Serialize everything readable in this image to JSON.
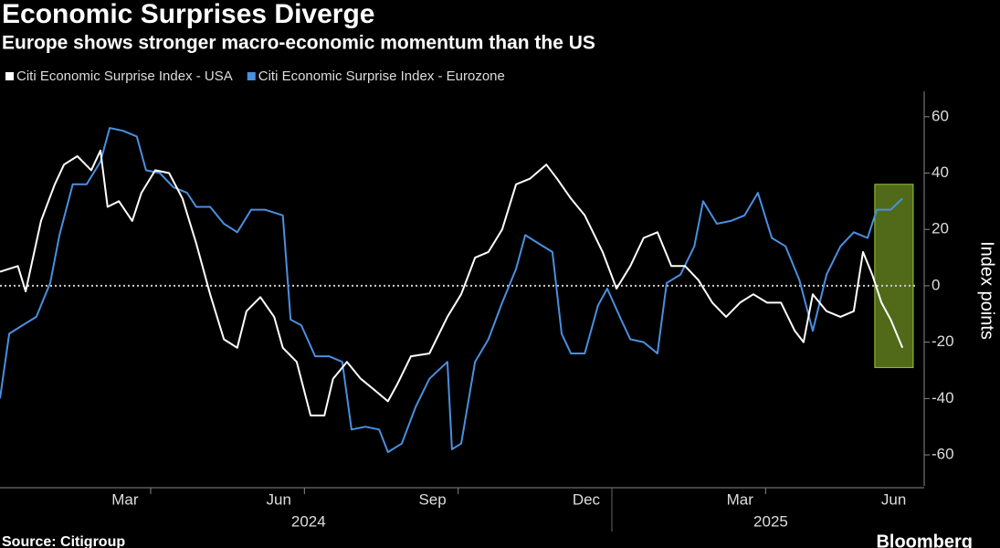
{
  "chart_data": {
    "type": "line",
    "title": "Economic Surprises Diverge",
    "subtitle": "Europe shows stronger macro-economic momentum than the US",
    "y_label": "Index points",
    "source": "Source: Citigroup",
    "brand": "Bloomberg",
    "xlim": [
      1.06,
      18.97
    ],
    "ylim": [
      -71,
      69
    ],
    "yticks": [
      60,
      40,
      20,
      0,
      -20,
      -40,
      -60
    ],
    "xticks": [
      {
        "value": 3.5,
        "label": "Mar"
      },
      {
        "value": 6.5,
        "label": "Jun"
      },
      {
        "value": 9.5,
        "label": "Sep"
      },
      {
        "value": 12.5,
        "label": "Dec"
      },
      {
        "value": 15.5,
        "label": "Mar"
      },
      {
        "value": 18.5,
        "label": "Jun"
      }
    ],
    "xtick_marks": [
      4,
      7,
      10,
      16
    ],
    "year_divider": 13,
    "year_labels": [
      {
        "value": 7.08,
        "label": "2024"
      },
      {
        "value": 16.1,
        "label": "2025"
      }
    ],
    "highlight": {
      "xlim": [
        18.13,
        18.88
      ],
      "ylim": [
        -29,
        36
      ],
      "color": "#6b8e23"
    },
    "series": [
      {
        "name": "Citi Economic Surprise Index - USA",
        "color": "#ffffff",
        "x": [
          1.06,
          1.41,
          1.56,
          1.86,
          2.13,
          2.31,
          2.57,
          2.84,
          3.02,
          3.16,
          3.38,
          3.64,
          3.82,
          4.09,
          4.36,
          4.62,
          4.89,
          5.16,
          5.43,
          5.69,
          5.87,
          6.14,
          6.41,
          6.58,
          6.85,
          7.12,
          7.39,
          7.56,
          7.83,
          8.1,
          8.37,
          8.63,
          8.81,
          9.08,
          9.44,
          9.79,
          10.06,
          10.33,
          10.59,
          10.86,
          11.13,
          11.4,
          11.72,
          11.93,
          12.2,
          12.47,
          12.82,
          13.09,
          13.36,
          13.62,
          13.89,
          14.16,
          14.43,
          14.69,
          14.96,
          15.23,
          15.5,
          15.76,
          16.03,
          16.3,
          16.57,
          16.74,
          16.92,
          17.19,
          17.46,
          17.72,
          17.9,
          18.08,
          18.26,
          18.44,
          18.67
        ],
        "values": [
          5,
          7,
          -2,
          23,
          36,
          43,
          46,
          41,
          48,
          28,
          30,
          23,
          33,
          41,
          40,
          31,
          15,
          -3,
          -19,
          -22,
          -9,
          -4,
          -11,
          -22,
          -27,
          -46,
          -46,
          -33,
          -27,
          -33,
          -37,
          -41,
          -35,
          -25,
          -24,
          -11,
          -3,
          10,
          12,
          20,
          36,
          38,
          43,
          38,
          31,
          25,
          12,
          -1,
          7,
          17,
          19,
          7,
          7,
          2,
          -6,
          -11,
          -6,
          -3,
          -6,
          -6,
          -16,
          -20,
          -3,
          -9,
          -11,
          -9,
          12,
          4,
          -6,
          -12,
          -22
        ]
      },
      {
        "name": "Citi Economic Surprise Index - Eurozone",
        "color": "#4a8fe0",
        "x": [
          1.06,
          1.24,
          1.5,
          1.77,
          2.04,
          2.22,
          2.48,
          2.75,
          3.02,
          3.2,
          3.46,
          3.73,
          3.91,
          4.18,
          4.44,
          4.71,
          4.89,
          5.16,
          5.43,
          5.69,
          5.96,
          6.23,
          6.58,
          6.73,
          6.94,
          7.21,
          7.48,
          7.74,
          7.92,
          8.19,
          8.46,
          8.63,
          8.9,
          9.17,
          9.44,
          9.79,
          9.88,
          10.06,
          10.33,
          10.59,
          10.86,
          11.13,
          11.31,
          11.57,
          11.84,
          12.02,
          12.2,
          12.47,
          12.73,
          12.91,
          13.18,
          13.36,
          13.62,
          13.89,
          14.07,
          14.34,
          14.61,
          14.78,
          15.05,
          15.32,
          15.59,
          15.85,
          16.12,
          16.39,
          16.66,
          16.92,
          17.19,
          17.46,
          17.72,
          17.99,
          18.17,
          18.44,
          18.67
        ],
        "values": [
          -40,
          -17,
          -14,
          -11,
          1,
          18,
          36,
          36,
          44,
          56,
          55,
          53,
          41,
          40,
          35,
          33,
          28,
          28,
          22,
          19,
          27,
          27,
          25,
          -12,
          -14,
          -25,
          -25,
          -27,
          -51,
          -50,
          -51,
          -59,
          -56,
          -43,
          -33,
          -27,
          -58,
          -56,
          -27,
          -19,
          -6,
          6,
          18,
          15,
          12,
          -17,
          -24,
          -24,
          -7,
          -1,
          -12,
          -19,
          -20,
          -24,
          1,
          4,
          14,
          30,
          22,
          23,
          25,
          33,
          17,
          14,
          2,
          -16,
          4,
          14,
          19,
          17,
          27,
          27,
          31
        ]
      }
    ]
  }
}
